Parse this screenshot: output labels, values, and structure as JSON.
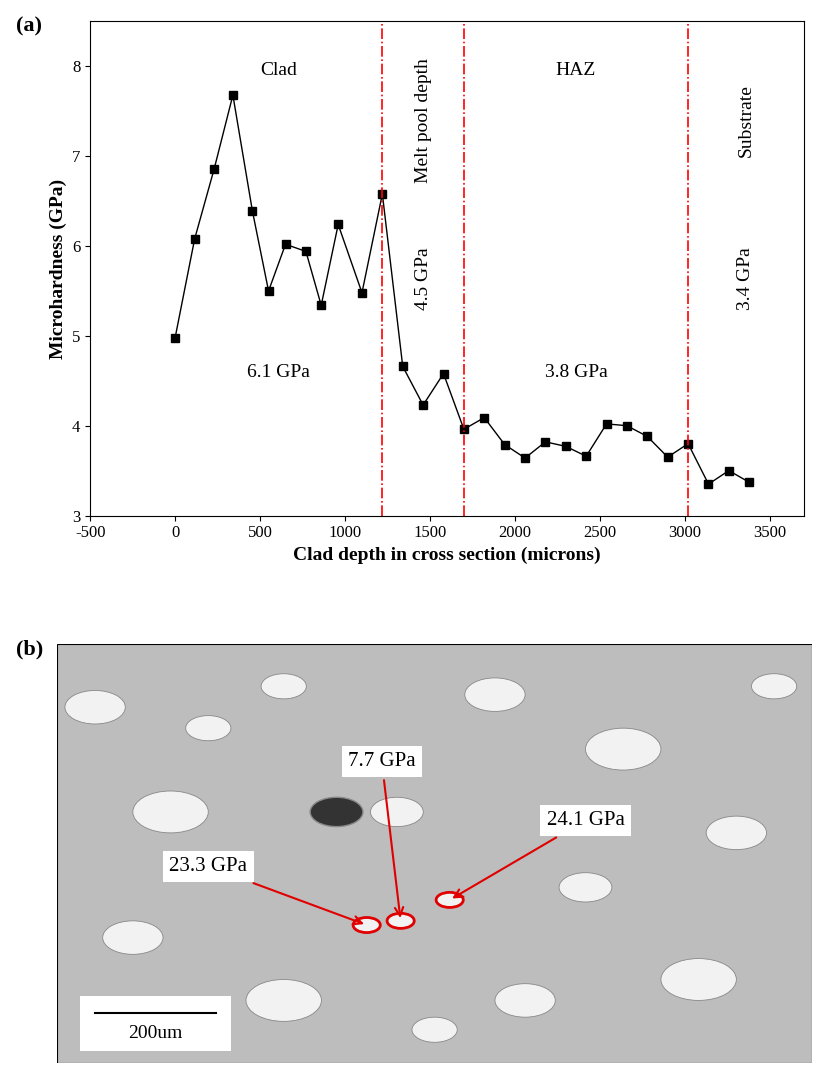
{
  "chart_data": {
    "type": "line",
    "panel_label": "(a)",
    "x_label": "Clad depth in cross section (microns)",
    "y_label": "Microhardness (GPa)",
    "x": [
      0,
      115,
      230,
      340,
      455,
      550,
      650,
      770,
      860,
      960,
      1100,
      1220,
      1340,
      1460,
      1580,
      1700,
      1820,
      1940,
      2060,
      2180,
      2300,
      2420,
      2540,
      2660,
      2780,
      2900,
      3020,
      3140,
      3260,
      3380
    ],
    "values": [
      4.98,
      6.08,
      6.86,
      7.68,
      6.39,
      5.5,
      6.02,
      5.94,
      5.34,
      6.24,
      5.48,
      6.58,
      4.66,
      4.23,
      4.58,
      3.96,
      4.09,
      3.79,
      3.64,
      3.82,
      3.77,
      3.66,
      4.02,
      4.0,
      3.88,
      3.65,
      3.8,
      3.35,
      3.5,
      3.37
    ],
    "color": "#000000",
    "marker": "square",
    "boundaries": [
      1220,
      1700,
      3020
    ],
    "boundary_color": "#ff0000",
    "boundary_line_style": "dashdot",
    "regions": [
      {
        "name": "Clad",
        "value_text": "6.1 GPa"
      },
      {
        "name": "Melt pool depth",
        "value_text": "4.5 GPa"
      },
      {
        "name": "HAZ",
        "value_text": "3.8 GPa"
      },
      {
        "name": "Substrate",
        "value_text": "3.4 GPa"
      }
    ],
    "xlim": [
      -500,
      3700
    ],
    "ylim": [
      3,
      8.5
    ],
    "xticks": [
      -500,
      0,
      500,
      1000,
      1500,
      2000,
      2500,
      3000,
      3500
    ],
    "yticks": [
      3,
      4,
      5,
      6,
      7,
      8
    ],
    "grid": false
  },
  "panel_b": {
    "panel_label": "(b)",
    "annotations": [
      "23.3 GPa",
      "7.7 GPa",
      "24.1 GPa"
    ],
    "annotation_color": "#e00000",
    "scale_bar": "200um"
  }
}
